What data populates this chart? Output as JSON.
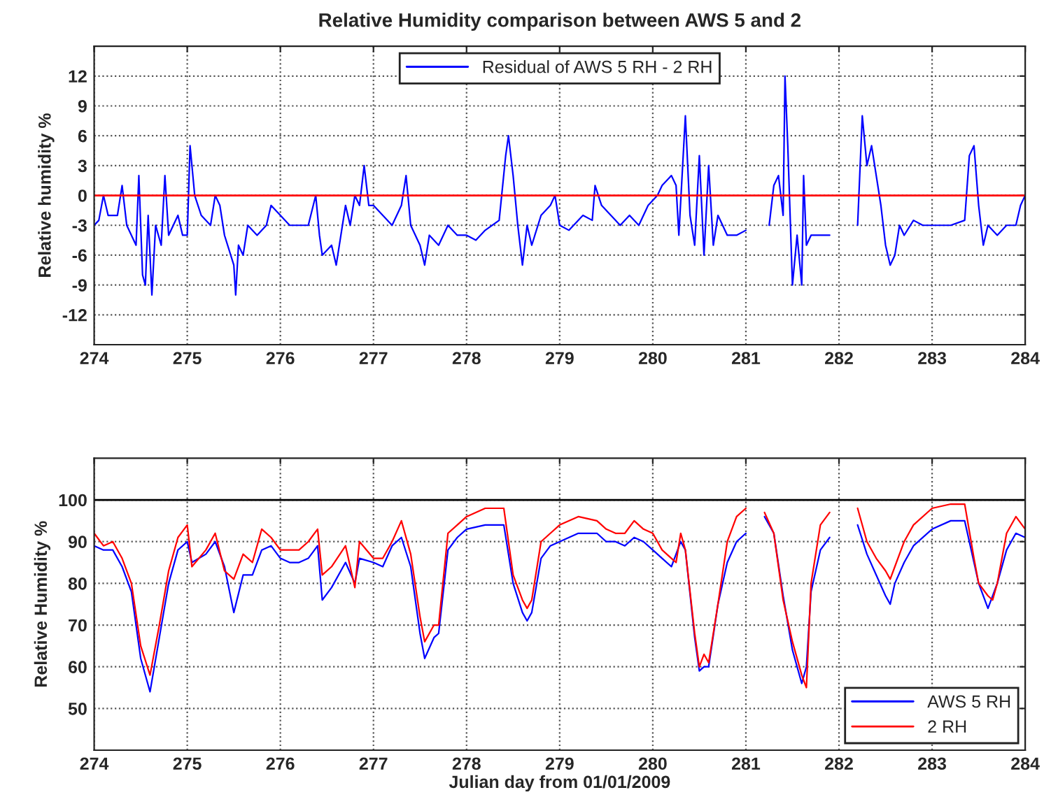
{
  "chart_data": [
    {
      "type": "line",
      "title": "Relative Humidity comparison between AWS 5 and 2",
      "ylabel": "Relative humidity %",
      "series": [
        {
          "name": "Residual of AWS 5 RH - 2 RH",
          "color": "#0000ff",
          "x": [
            274.0,
            274.05,
            274.1,
            274.15,
            274.25,
            274.3,
            274.35,
            274.45,
            274.48,
            274.52,
            274.55,
            274.58,
            274.62,
            274.66,
            274.72,
            274.76,
            274.8,
            274.9,
            274.95,
            275.0,
            275.03,
            275.08,
            275.15,
            275.25,
            275.3,
            275.35,
            275.4,
            275.5,
            275.52,
            275.55,
            275.6,
            275.65,
            275.75,
            275.85,
            275.9,
            276.0,
            276.1,
            276.2,
            276.3,
            276.38,
            276.42,
            276.45,
            276.55,
            276.6,
            276.7,
            276.75,
            276.8,
            276.85,
            276.9,
            276.95,
            277.0,
            277.1,
            277.2,
            277.3,
            277.35,
            277.4,
            277.5,
            277.55,
            277.6,
            277.7,
            277.8,
            277.9,
            278.0,
            278.1,
            278.2,
            278.35,
            278.42,
            278.45,
            278.5,
            278.55,
            278.6,
            278.65,
            278.7,
            278.8,
            278.9,
            278.95,
            279.0,
            279.1,
            279.25,
            279.35,
            279.38,
            279.45,
            279.55,
            279.65,
            279.75,
            279.85,
            279.95,
            280.05,
            280.1,
            280.2,
            280.25,
            280.28,
            280.35,
            280.4,
            280.45,
            280.5,
            280.55,
            280.6,
            280.65,
            280.7,
            280.8,
            280.9,
            281.0,
            281.02,
            281.25,
            281.3,
            281.35,
            281.4,
            281.42,
            281.45,
            281.5,
            281.55,
            281.6,
            281.62,
            281.65,
            281.7,
            281.8,
            281.9,
            281.92,
            282.2,
            282.25,
            282.3,
            282.35,
            282.4,
            282.45,
            282.5,
            282.55,
            282.6,
            282.65,
            282.7,
            282.8,
            282.9,
            283.0,
            283.2,
            283.35,
            283.4,
            283.45,
            283.5,
            283.55,
            283.6,
            283.7,
            283.8,
            283.9,
            283.95,
            284.0
          ],
          "values": [
            -3,
            -2.5,
            0,
            -2,
            -2,
            1,
            -3,
            -5,
            2,
            -8,
            -9,
            -2,
            -10,
            -3,
            -5,
            2,
            -4,
            -2,
            -4,
            -4,
            5,
            0,
            -2,
            -3,
            0,
            -1,
            -4,
            -7,
            -10,
            -5,
            -6,
            -3,
            -4,
            -3,
            -1,
            -2,
            -3,
            -3,
            -3,
            0,
            -4,
            -6,
            -5,
            -7,
            -1,
            -3,
            0,
            -1,
            3,
            -1,
            -1,
            -2,
            -3,
            -1,
            2,
            -3,
            -5,
            -7,
            -4,
            -5,
            -3,
            -4,
            -4,
            -4.5,
            -3.5,
            -2.5,
            4,
            6,
            2,
            -3,
            -7,
            -3,
            -5,
            -2,
            -1,
            0,
            -3,
            -3.5,
            -2,
            -2.5,
            1,
            -1,
            -2,
            -3,
            -2,
            -3,
            -1,
            0,
            1,
            2,
            1,
            -4,
            8,
            -2,
            -5,
            4,
            -6,
            3,
            -5,
            -2,
            -4,
            -4,
            -3.5,
            null,
            -3,
            1,
            2,
            -2,
            12,
            5,
            -9,
            -4,
            -9,
            2,
            -5,
            -4,
            -4,
            -4,
            null,
            -3,
            8,
            3,
            5,
            2,
            -1,
            -5,
            -7,
            -6,
            -3,
            -4,
            -2.5,
            -3,
            -3,
            -3,
            -2.5,
            4,
            5,
            -1,
            -5,
            -3,
            -4,
            -3,
            -3,
            -1,
            0
          ]
        }
      ],
      "ref_lines": [
        {
          "axis": "y",
          "value": 0,
          "color": "#ff0000"
        }
      ],
      "xlim": [
        274,
        284
      ],
      "xticks": [
        274,
        275,
        276,
        277,
        278,
        279,
        280,
        281,
        282,
        283,
        284
      ],
      "ylim": [
        -15,
        15
      ],
      "yticks": [
        -12,
        -9,
        -6,
        -3,
        0,
        3,
        6,
        9,
        12
      ],
      "grid": true,
      "legend": "top"
    },
    {
      "type": "line",
      "xlabel": "Julian day from 01/01/2009",
      "ylabel": "Relative Humidity %",
      "x": [
        274.0,
        274.1,
        274.2,
        274.3,
        274.4,
        274.5,
        274.6,
        274.7,
        274.8,
        274.9,
        275.0,
        275.05,
        275.2,
        275.3,
        275.4,
        275.5,
        275.6,
        275.7,
        275.8,
        275.9,
        276.0,
        276.1,
        276.2,
        276.3,
        276.4,
        276.45,
        276.55,
        276.7,
        276.8,
        276.85,
        277.0,
        277.1,
        277.2,
        277.3,
        277.4,
        277.5,
        277.55,
        277.65,
        277.7,
        277.8,
        277.9,
        278.0,
        278.2,
        278.4,
        278.5,
        278.6,
        278.65,
        278.7,
        278.8,
        278.9,
        279.0,
        279.2,
        279.4,
        279.5,
        279.6,
        279.7,
        279.8,
        279.9,
        280.0,
        280.1,
        280.2,
        280.25,
        280.3,
        280.35,
        280.45,
        280.5,
        280.55,
        280.6,
        280.7,
        280.8,
        280.9,
        281.0,
        281.02,
        281.2,
        281.3,
        281.4,
        281.5,
        281.6,
        281.65,
        281.7,
        281.8,
        281.9,
        281.92,
        282.2,
        282.3,
        282.4,
        282.5,
        282.55,
        282.6,
        282.7,
        282.8,
        283.0,
        283.2,
        283.35,
        283.45,
        283.5,
        283.6,
        283.65,
        283.7,
        283.8,
        283.9,
        284.0
      ],
      "series": [
        {
          "name": "AWS 5 RH",
          "color": "#0000ff",
          "values": [
            89,
            88,
            88,
            84,
            78,
            62,
            54,
            67,
            80,
            88,
            90,
            85,
            87,
            90,
            84,
            73,
            82,
            82,
            88,
            89,
            86,
            85,
            85,
            86,
            89,
            76,
            79,
            85,
            80,
            86,
            85,
            84,
            89,
            91,
            84,
            68,
            62,
            67,
            68,
            88,
            91,
            93,
            94,
            94,
            80,
            73,
            71,
            73,
            86,
            89,
            90,
            92,
            92,
            90,
            90,
            89,
            91,
            90,
            88,
            86,
            84,
            87,
            90,
            88,
            67,
            59,
            60,
            60,
            75,
            85,
            90,
            92,
            null,
            96,
            92,
            77,
            64,
            56,
            60,
            78,
            88,
            91,
            null,
            94,
            87,
            82,
            77,
            75,
            80,
            85,
            89,
            93,
            95,
            95,
            85,
            80,
            74,
            77,
            80,
            88,
            92,
            91
          ]
        },
        {
          "name": "2 RH",
          "color": "#ff0000",
          "values": [
            92,
            89,
            90,
            86,
            80,
            65,
            58,
            70,
            83,
            91,
            94,
            84,
            88,
            92,
            83,
            81,
            87,
            85,
            93,
            91,
            88,
            88,
            88,
            90,
            93,
            82,
            84,
            89,
            79,
            90,
            86,
            86,
            90,
            95,
            87,
            72,
            66,
            70,
            70,
            92,
            94,
            96,
            98,
            98,
            82,
            76,
            74,
            76,
            90,
            92,
            94,
            96,
            95,
            93,
            92,
            92,
            95,
            93,
            92,
            88,
            86,
            85,
            92,
            88,
            68,
            60,
            63,
            61,
            75,
            90,
            96,
            98,
            null,
            97,
            92,
            76,
            66,
            58,
            55,
            80,
            94,
            97,
            null,
            98,
            90,
            86,
            83,
            81,
            84,
            90,
            94,
            98,
            99,
            99,
            86,
            80,
            77,
            76,
            80,
            92,
            96,
            93
          ]
        }
      ],
      "ref_lines": [
        {
          "axis": "y",
          "value": 100,
          "color": "#000000"
        }
      ],
      "xlim": [
        274,
        284
      ],
      "xticks": [
        274,
        275,
        276,
        277,
        278,
        279,
        280,
        281,
        282,
        283,
        284
      ],
      "ylim": [
        40,
        110
      ],
      "yticks": [
        50,
        60,
        70,
        80,
        90,
        100
      ],
      "grid": true,
      "legend": "bottom right"
    }
  ]
}
